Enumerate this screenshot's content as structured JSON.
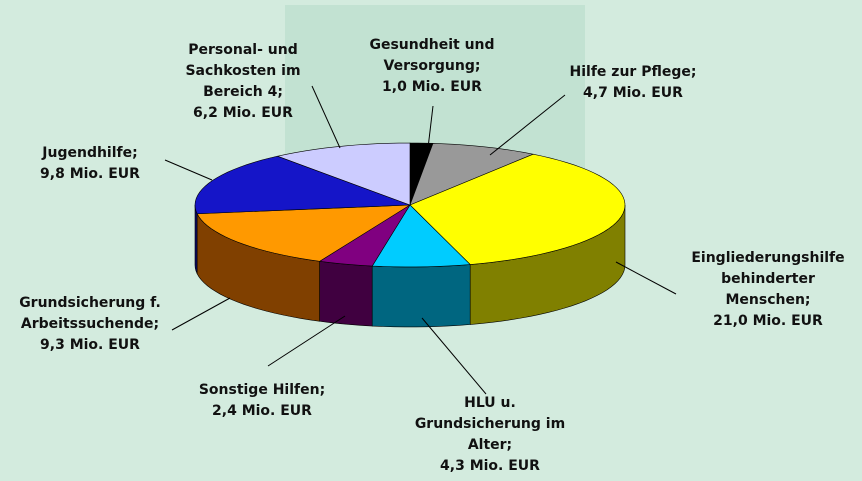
{
  "chart_data": {
    "type": "pie3d",
    "categories": [
      "Gesundheit und Versorgung;",
      "Hilfe zur Pflege;",
      "Eingliederungshilfe behinderter Menschen;",
      "HLU u. Grundsicherung im Alter;",
      "Sonstige Hilfen;",
      "Grundsicherung f. Arbeitssuchende;",
      "Jugendhilfe;",
      "Personal- und Sachkosten im Bereich 4;"
    ],
    "values": [
      1.0,
      4.7,
      21.0,
      4.3,
      2.4,
      9.3,
      9.8,
      6.2
    ],
    "value_labels": [
      "1,0 Mio. EUR",
      "4,7 Mio. EUR",
      "21,0 Mio. EUR",
      "4,3 Mio. EUR",
      "2,4 Mio. EUR",
      "9,3 Mio. EUR",
      "9,8 Mio. EUR",
      "6,2 Mio. EUR"
    ],
    "colors": [
      "#000000",
      "#999999",
      "#ffff00",
      "#00ccff",
      "#800080",
      "#ff9900",
      "#1515c8",
      "#ccccff"
    ],
    "side_colors": [
      "#000000",
      "#4d4d4d",
      "#808000",
      "#006680",
      "#400040",
      "#804000",
      "#0a0a64",
      "#666680"
    ]
  }
}
